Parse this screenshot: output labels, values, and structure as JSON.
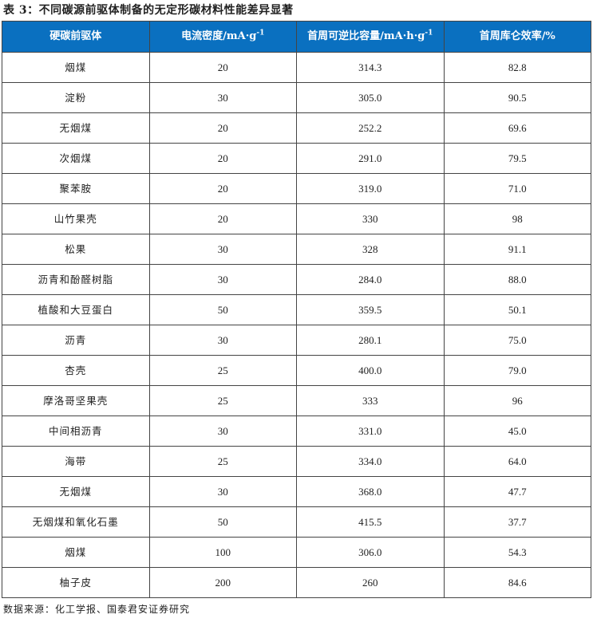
{
  "title": "表 3：不同碳源前驱体制备的无定形碳材料性能差异显著",
  "headers": {
    "precursor": "硬碳前驱体",
    "current": "电流密度/mA·g",
    "current_sup": "-1",
    "capacity": "首周可逆比容量/mA·h·g",
    "capacity_sup": "-1",
    "efficiency": "首周库仑效率/%"
  },
  "rows": [
    {
      "name": "烟煤",
      "current": "20",
      "capacity": "314.3",
      "efficiency": "82.8"
    },
    {
      "name": "淀粉",
      "current": "30",
      "capacity": "305.0",
      "efficiency": "90.5"
    },
    {
      "name": "无烟煤",
      "current": "20",
      "capacity": "252.2",
      "efficiency": "69.6"
    },
    {
      "name": "次烟煤",
      "current": "20",
      "capacity": "291.0",
      "efficiency": "79.5"
    },
    {
      "name": "聚苯胺",
      "current": "20",
      "capacity": "319.0",
      "efficiency": "71.0"
    },
    {
      "name": "山竹果壳",
      "current": "20",
      "capacity": "330",
      "efficiency": "98"
    },
    {
      "name": "松果",
      "current": "30",
      "capacity": "328",
      "efficiency": "91.1"
    },
    {
      "name": "沥青和酚醛树脂",
      "current": "30",
      "capacity": "284.0",
      "efficiency": "88.0"
    },
    {
      "name": "植酸和大豆蛋白",
      "current": "50",
      "capacity": "359.5",
      "efficiency": "50.1"
    },
    {
      "name": "沥青",
      "current": "30",
      "capacity": "280.1",
      "efficiency": "75.0"
    },
    {
      "name": "杏壳",
      "current": "25",
      "capacity": "400.0",
      "efficiency": "79.0"
    },
    {
      "name": "摩洛哥坚果壳",
      "current": "25",
      "capacity": "333",
      "efficiency": "96"
    },
    {
      "name": "中间相沥青",
      "current": "30",
      "capacity": "331.0",
      "efficiency": "45.0"
    },
    {
      "name": "海带",
      "current": "25",
      "capacity": "334.0",
      "efficiency": "64.0"
    },
    {
      "name": "无烟煤",
      "current": "30",
      "capacity": "368.0",
      "efficiency": "47.7"
    },
    {
      "name": "无烟煤和氧化石墨",
      "current": "50",
      "capacity": "415.5",
      "efficiency": "37.7"
    },
    {
      "name": "烟煤",
      "current": "100",
      "capacity": "306.0",
      "efficiency": "54.3"
    },
    {
      "name": "柚子皮",
      "current": "200",
      "capacity": "260",
      "efficiency": "84.6"
    }
  ],
  "source": "数据来源：化工学报、国泰君安证券研究",
  "colors": {
    "header_bg": "#0a70c0",
    "header_text": "#ffffff"
  }
}
